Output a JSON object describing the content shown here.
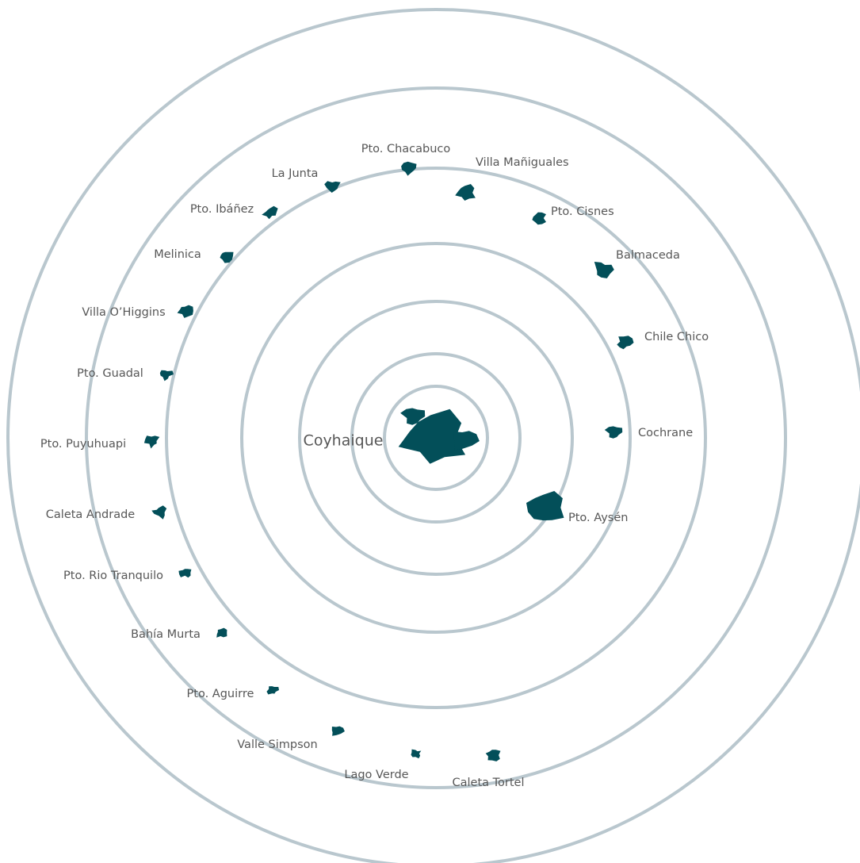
{
  "center": {
    "label": "Coyhaique"
  },
  "nodes": [
    {
      "label": "Pto. Chacabuco"
    },
    {
      "label": "Villa Mañiguales"
    },
    {
      "label": "Pto. Cisnes"
    },
    {
      "label": "Balmaceda"
    },
    {
      "label": "Chile Chico"
    },
    {
      "label": "Cochrane"
    },
    {
      "label": "Pto. Aysén"
    },
    {
      "label": "Caleta Tortel"
    },
    {
      "label": "Lago Verde"
    },
    {
      "label": "Valle Simpson"
    },
    {
      "label": "Pto. Aguirre"
    },
    {
      "label": "Bahía Murta"
    },
    {
      "label": "Pto. Rio Tranquilo"
    },
    {
      "label": "Caleta Andrade"
    },
    {
      "label": "Pto. Puyuhuapi"
    },
    {
      "label": "Pto. Guadal"
    },
    {
      "label": "Villa O’Higgins"
    },
    {
      "label": "Melinica"
    },
    {
      "label": "Pto. Ibáñez"
    },
    {
      "label": "La Junta"
    }
  ]
}
